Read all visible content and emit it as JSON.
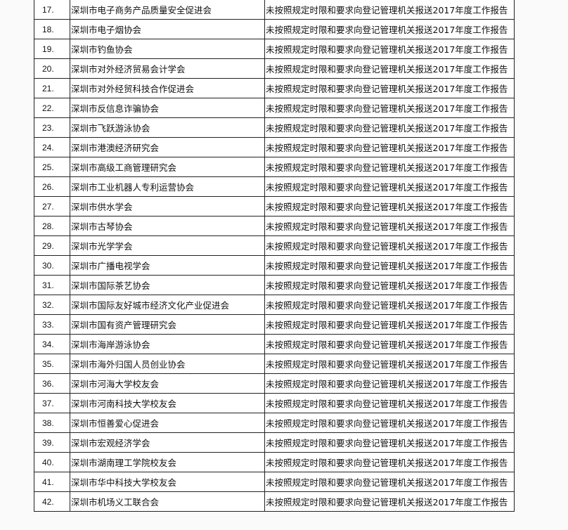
{
  "rows": [
    {
      "no": "17.",
      "name": "深圳市电子商务产品质量安全促进会",
      "reason": "未按照规定时限和要求向登记管理机关报送2017年度工作报告"
    },
    {
      "no": "18.",
      "name": "深圳市电子烟协会",
      "reason": "未按照规定时限和要求向登记管理机关报送2017年度工作报告"
    },
    {
      "no": "19.",
      "name": "深圳市钓鱼协会",
      "reason": "未按照规定时限和要求向登记管理机关报送2017年度工作报告"
    },
    {
      "no": "20.",
      "name": "深圳市对外经济贸易会计学会",
      "reason": "未按照规定时限和要求向登记管理机关报送2017年度工作报告"
    },
    {
      "no": "21.",
      "name": "深圳市对外经贸科技合作促进会",
      "reason": "未按照规定时限和要求向登记管理机关报送2017年度工作报告"
    },
    {
      "no": "22.",
      "name": "深圳市反信息诈骗协会",
      "reason": "未按照规定时限和要求向登记管理机关报送2017年度工作报告"
    },
    {
      "no": "23.",
      "name": "深圳市飞跃游泳协会",
      "reason": "未按照规定时限和要求向登记管理机关报送2017年度工作报告"
    },
    {
      "no": "24.",
      "name": "深圳市港澳经济研究会",
      "reason": "未按照规定时限和要求向登记管理机关报送2017年度工作报告"
    },
    {
      "no": "25.",
      "name": "深圳市高级工商管理研究会",
      "reason": "未按照规定时限和要求向登记管理机关报送2017年度工作报告"
    },
    {
      "no": "26.",
      "name": "深圳市工业机器人专利运营协会",
      "reason": "未按照规定时限和要求向登记管理机关报送2017年度工作报告"
    },
    {
      "no": "27.",
      "name": "深圳市供水学会",
      "reason": "未按照规定时限和要求向登记管理机关报送2017年度工作报告"
    },
    {
      "no": "28.",
      "name": "深圳市古琴协会",
      "reason": "未按照规定时限和要求向登记管理机关报送2017年度工作报告"
    },
    {
      "no": "29.",
      "name": "深圳市光学学会",
      "reason": "未按照规定时限和要求向登记管理机关报送2017年度工作报告"
    },
    {
      "no": "30.",
      "name": "深圳市广播电视学会",
      "reason": "未按照规定时限和要求向登记管理机关报送2017年度工作报告"
    },
    {
      "no": "31.",
      "name": "深圳市国际茶艺协会",
      "reason": "未按照规定时限和要求向登记管理机关报送2017年度工作报告"
    },
    {
      "no": "32.",
      "name": "深圳市国际友好城市经济文化产业促进会",
      "reason": "未按照规定时限和要求向登记管理机关报送2017年度工作报告"
    },
    {
      "no": "33.",
      "name": "深圳市国有资产管理研究会",
      "reason": "未按照规定时限和要求向登记管理机关报送2017年度工作报告"
    },
    {
      "no": "34.",
      "name": "深圳市海岸游泳协会",
      "reason": "未按照规定时限和要求向登记管理机关报送2017年度工作报告"
    },
    {
      "no": "35.",
      "name": "深圳市海外归国人员创业协会",
      "reason": "未按照规定时限和要求向登记管理机关报送2017年度工作报告"
    },
    {
      "no": "36.",
      "name": "深圳市河海大学校友会",
      "reason": "未按照规定时限和要求向登记管理机关报送2017年度工作报告"
    },
    {
      "no": "37.",
      "name": "深圳市河南科技大学校友会",
      "reason": "未按照规定时限和要求向登记管理机关报送2017年度工作报告"
    },
    {
      "no": "38.",
      "name": "深圳市恒善爱心促进会",
      "reason": "未按照规定时限和要求向登记管理机关报送2017年度工作报告"
    },
    {
      "no": "39.",
      "name": "深圳市宏观经济学会",
      "reason": "未按照规定时限和要求向登记管理机关报送2017年度工作报告"
    },
    {
      "no": "40.",
      "name": "深圳市湖南理工学院校友会",
      "reason": "未按照规定时限和要求向登记管理机关报送2017年度工作报告"
    },
    {
      "no": "41.",
      "name": "深圳市华中科技大学校友会",
      "reason": "未按照规定时限和要求向登记管理机关报送2017年度工作报告"
    },
    {
      "no": "42.",
      "name": "深圳市机场义工联合会",
      "reason": "未按照规定时限和要求向登记管理机关报送2017年度工作报告"
    }
  ]
}
